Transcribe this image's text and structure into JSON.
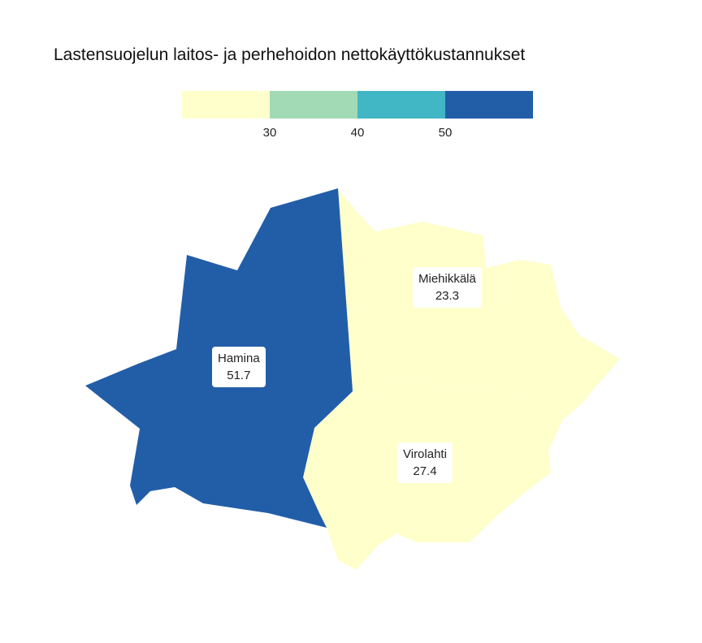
{
  "title": "Lastensuojelun laitos- ja perhehoidon nettokäyttökustannukset",
  "legend": {
    "colors": [
      "#ffffcc",
      "#a1dab4",
      "#41b6c4",
      "#225ea8"
    ],
    "ticks": [
      "30",
      "40",
      "50"
    ]
  },
  "regions": [
    {
      "name": "Hamina",
      "value": "51.7",
      "color": "#225ea8"
    },
    {
      "name": "Miehikkälä",
      "value": "23.3",
      "color": "#ffffcc"
    },
    {
      "name": "Virolahti",
      "value": "27.4",
      "color": "#ffffcc"
    }
  ]
}
